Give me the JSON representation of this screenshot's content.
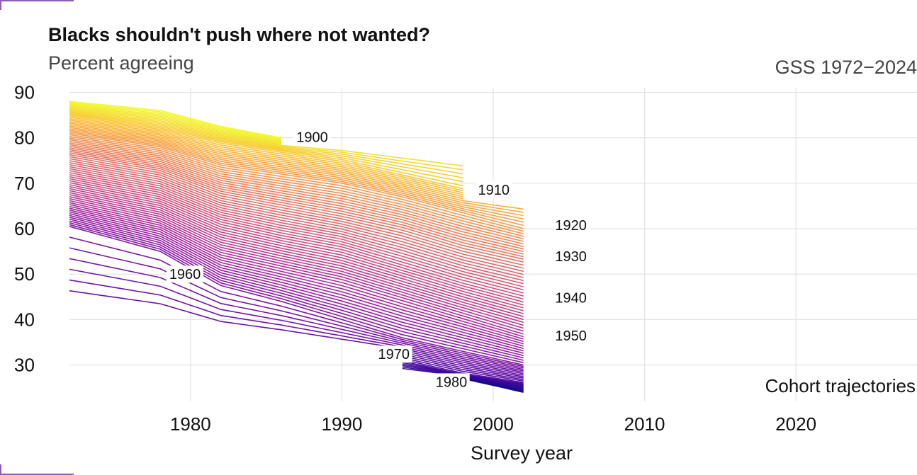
{
  "title": "Blacks shouldn't push where not wanted?",
  "subtitle": "Percent agreeing",
  "source": "GSS 1972−2024",
  "chart_data": {
    "type": "line",
    "title": "Blacks shouldn't push where not wanted?",
    "subtitle": "Percent agreeing",
    "xlabel": "Survey year",
    "ylabel": "",
    "annotation": "Cohort trajectories",
    "xlim": [
      1972,
      2028
    ],
    "ylim": [
      22,
      91
    ],
    "x_ticks": [
      1980,
      1990,
      2000,
      2010,
      2020
    ],
    "y_ticks": [
      30,
      40,
      50,
      60,
      70,
      80,
      90
    ],
    "grid": true,
    "legend": "none",
    "color_scale": [
      "#0d0887",
      "#5b02a3",
      "#9a179b",
      "#cb4678",
      "#eb7852",
      "#fbb32f",
      "#f0f921"
    ],
    "series": [
      {
        "name": "1900",
        "x": [
          1972,
          1978,
          1982,
          1986
        ],
        "y": [
          88,
          86,
          82.5,
          80
        ]
      },
      {
        "name": "1910",
        "x": [
          1972,
          1978,
          1982,
          1986,
          1990,
          1994,
          1996,
          1998
        ],
        "y": [
          85,
          82,
          79,
          77,
          75,
          72,
          70.5,
          69
        ]
      },
      {
        "name": "1920",
        "x": [
          1972,
          1978,
          1982,
          1986,
          1990,
          1994,
          1998,
          2002
        ],
        "y": [
          81,
          78,
          74,
          72,
          70,
          67,
          63.5,
          60
        ]
      },
      {
        "name": "1930",
        "x": [
          1972,
          1978,
          1982,
          1986,
          1990,
          1994,
          1998,
          2002
        ],
        "y": [
          76.5,
          73,
          68,
          65.5,
          63,
          60,
          56,
          53
        ]
      },
      {
        "name": "1940",
        "x": [
          1972,
          1978,
          1982,
          1986,
          1990,
          1994,
          1998,
          2002
        ],
        "y": [
          71,
          67,
          61.5,
          58.5,
          56,
          52,
          48,
          44.5
        ]
      },
      {
        "name": "1950",
        "x": [
          1972,
          1978,
          1982,
          1986,
          1990,
          1994,
          1998,
          2002
        ],
        "y": [
          65.5,
          61,
          54.5,
          51.5,
          48.5,
          44.5,
          40.5,
          36.5
        ]
      },
      {
        "name": "1960",
        "x": [
          1972,
          1978,
          1982,
          1986,
          1990,
          1994,
          1998,
          2002
        ],
        "y": [
          60.5,
          55,
          47.5,
          44,
          40,
          36,
          33,
          30
        ]
      },
      {
        "name": "1970",
        "x": [
          1994,
          1998,
          2002
        ],
        "y": [
          31,
          28,
          26
        ]
      },
      {
        "name": "1980",
        "x": [
          1998,
          2002
        ],
        "y": [
          27,
          24
        ]
      }
    ],
    "cohort_labels": [
      {
        "text": "1900",
        "x": 1986.9,
        "y": 80.2
      },
      {
        "text": "1910",
        "x": 1998.9,
        "y": 68.6
      },
      {
        "text": "1920",
        "x": 2004.0,
        "y": 60.8
      },
      {
        "text": "1930",
        "x": 2004.0,
        "y": 53.9
      },
      {
        "text": "1940",
        "x": 2004.0,
        "y": 44.8
      },
      {
        "text": "1950",
        "x": 2004.0,
        "y": 36.5
      },
      {
        "text": "1960",
        "x": 1978.5,
        "y": 50.0
      },
      {
        "text": "1970",
        "x": 1992.3,
        "y": 32.4
      },
      {
        "text": "1980",
        "x": 1996.1,
        "y": 26.3
      }
    ]
  }
}
